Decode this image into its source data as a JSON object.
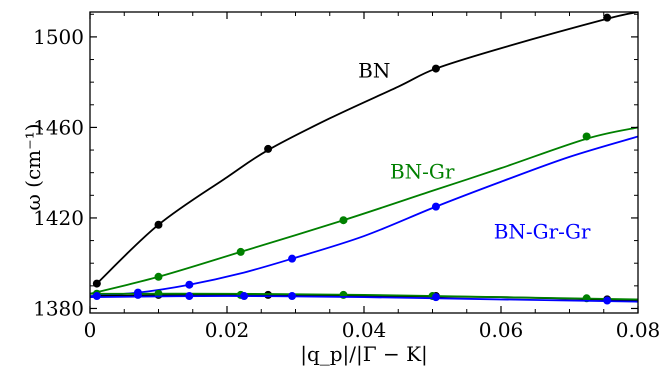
{
  "chart_data": {
    "type": "line",
    "xlabel": "|q_p|/|Γ − K|",
    "ylabel": "ω (cm⁻¹)",
    "xlim": [
      0,
      0.08
    ],
    "ylim": [
      1378,
      1511
    ],
    "x_ticks": [
      0,
      0.02,
      0.04,
      0.06,
      0.08
    ],
    "x_tick_labels": [
      "0",
      "0.02",
      "0.04",
      "0.06",
      "0.08"
    ],
    "y_ticks": [
      1380,
      1420,
      1460,
      1500
    ],
    "y_tick_labels": [
      "1380",
      "1420",
      "1460",
      "1500"
    ],
    "grid": false,
    "series": [
      {
        "name": "BN",
        "color": "#000000",
        "curve": [
          [
            0.001,
            1391
          ],
          [
            0.01,
            1417
          ],
          [
            0.02,
            1438
          ],
          [
            0.026,
            1450
          ],
          [
            0.035,
            1464
          ],
          [
            0.045,
            1478
          ],
          [
            0.0505,
            1486
          ],
          [
            0.06,
            1495
          ],
          [
            0.0755,
            1508
          ],
          [
            0.08,
            1511
          ]
        ],
        "markers": [
          [
            0.001,
            1391
          ],
          [
            0.01,
            1417
          ],
          [
            0.026,
            1450.5
          ],
          [
            0.0505,
            1486
          ],
          [
            0.0755,
            1508.5
          ]
        ]
      },
      {
        "name": "BN-Gr",
        "color": "#008000",
        "curve": [
          [
            0,
            1386.5
          ],
          [
            0.01,
            1394
          ],
          [
            0.022,
            1405
          ],
          [
            0.037,
            1419
          ],
          [
            0.05,
            1432
          ],
          [
            0.06,
            1442
          ],
          [
            0.0725,
            1455
          ],
          [
            0.08,
            1460
          ]
        ],
        "markers": [
          [
            0.01,
            1394
          ],
          [
            0.022,
            1405
          ],
          [
            0.037,
            1419
          ],
          [
            0.0725,
            1456
          ]
        ]
      },
      {
        "name": "BN-Gr-Gr",
        "color": "#0000ff",
        "curve": [
          [
            0,
            1385.5
          ],
          [
            0.007,
            1387
          ],
          [
            0.0145,
            1390.5
          ],
          [
            0.022,
            1395.5
          ],
          [
            0.0295,
            1402
          ],
          [
            0.04,
            1412
          ],
          [
            0.0505,
            1425
          ],
          [
            0.06,
            1436
          ],
          [
            0.07,
            1447
          ],
          [
            0.08,
            1456
          ]
        ],
        "markers": [
          [
            0.007,
            1387
          ],
          [
            0.0145,
            1390.5
          ],
          [
            0.0295,
            1402
          ],
          [
            0.0505,
            1425
          ]
        ]
      },
      {
        "name": "",
        "color": "#000000",
        "curve": [
          [
            0.001,
            1385.5
          ],
          [
            0.02,
            1386
          ],
          [
            0.04,
            1385.5
          ],
          [
            0.06,
            1385
          ],
          [
            0.08,
            1383.5
          ]
        ],
        "markers": [
          [
            0.001,
            1386
          ],
          [
            0.01,
            1386
          ],
          [
            0.026,
            1386
          ],
          [
            0.0505,
            1385.5
          ],
          [
            0.0755,
            1384
          ]
        ]
      },
      {
        "name": "",
        "color": "#008000",
        "curve": [
          [
            0,
            1386.5
          ],
          [
            0.02,
            1386.5
          ],
          [
            0.04,
            1386
          ],
          [
            0.06,
            1385
          ],
          [
            0.08,
            1384
          ]
        ],
        "markers": [
          [
            0.001,
            1386.5
          ],
          [
            0.01,
            1386.5
          ],
          [
            0.022,
            1386
          ],
          [
            0.037,
            1386
          ],
          [
            0.05,
            1385.5
          ],
          [
            0.0725,
            1384.5
          ]
        ]
      },
      {
        "name": "",
        "color": "#0000ff",
        "curve": [
          [
            0,
            1385
          ],
          [
            0.02,
            1385.5
          ],
          [
            0.04,
            1385
          ],
          [
            0.06,
            1384
          ],
          [
            0.08,
            1383
          ]
        ],
        "markers": [
          [
            0.001,
            1385.5
          ],
          [
            0.007,
            1386
          ],
          [
            0.0145,
            1385.5
          ],
          [
            0.0225,
            1385.5
          ],
          [
            0.0295,
            1385.5
          ],
          [
            0.0505,
            1385
          ],
          [
            0.0755,
            1383.5
          ]
        ]
      }
    ],
    "annotations": [
      {
        "text": "BN",
        "color": "#000000",
        "x": 0.0415,
        "y": 1482
      },
      {
        "text": "BN-Gr",
        "color": "#008000",
        "x": 0.0485,
        "y": 1437.5
      },
      {
        "text": "BN-Gr-Gr",
        "color": "#0000ff",
        "x": 0.066,
        "y": 1411
      }
    ]
  }
}
